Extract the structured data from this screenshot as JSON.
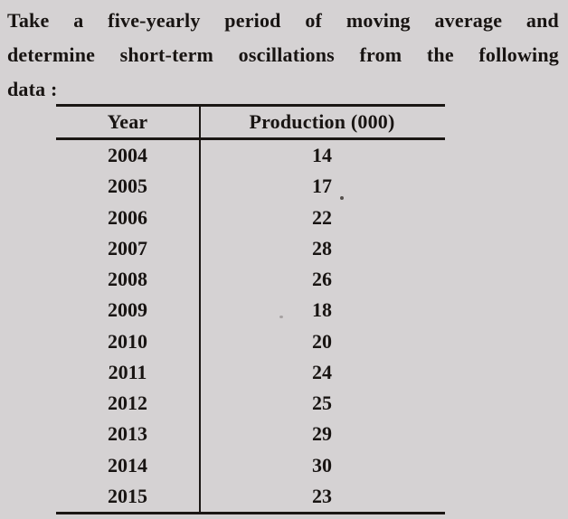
{
  "page": {
    "background_color": "#d5d2d3",
    "ink_color": "#181412"
  },
  "problem": {
    "line1": "Take a five-yearly period of moving average and",
    "line2": "determine short-term oscillations from the following",
    "line3": "data :"
  },
  "table": {
    "headers": {
      "year": "Year",
      "production": "Production (000)"
    },
    "rows": [
      {
        "year": "2004",
        "value": "14"
      },
      {
        "year": "2005",
        "value": "17"
      },
      {
        "year": "2006",
        "value": "22"
      },
      {
        "year": "2007",
        "value": "28"
      },
      {
        "year": "2008",
        "value": "26"
      },
      {
        "year": "2009",
        "value": "18"
      },
      {
        "year": "2010",
        "value": "20"
      },
      {
        "year": "2011",
        "value": "24"
      },
      {
        "year": "2012",
        "value": "25"
      },
      {
        "year": "2013",
        "value": "29"
      },
      {
        "year": "2014",
        "value": "30"
      },
      {
        "year": "2015",
        "value": "23"
      }
    ]
  }
}
